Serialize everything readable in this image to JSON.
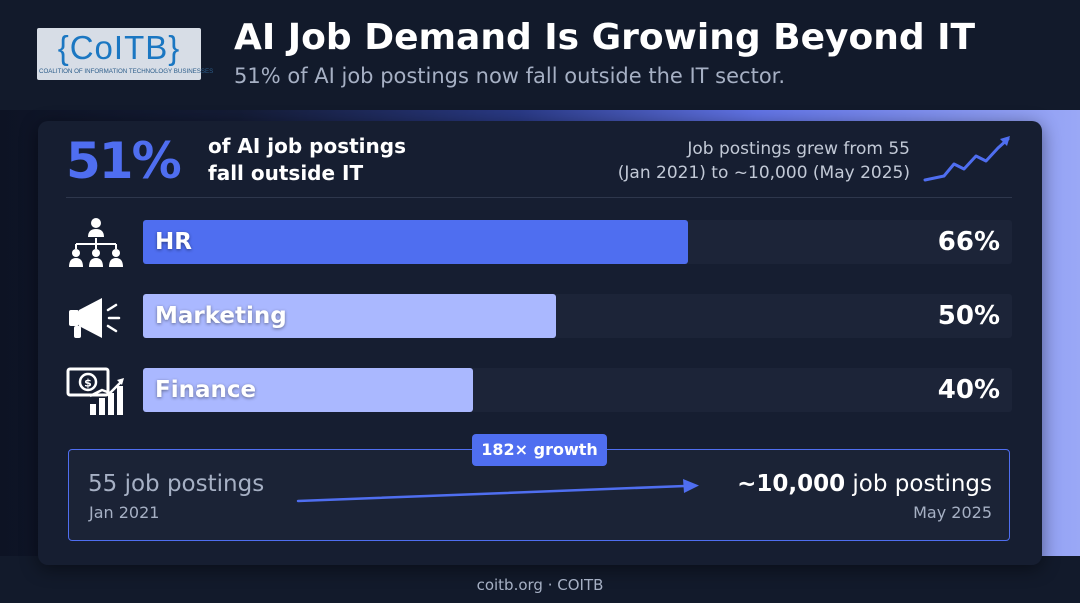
{
  "logo": {
    "main": "{CoITB}",
    "sub": "COALITION OF INFORMATION TECHNOLOGY BUSINESSES"
  },
  "header": {
    "title": "AI Job Demand Is Growing Beyond IT",
    "subtitle": "51% of AI job postings now fall outside the IT sector."
  },
  "summary": {
    "stat": "51%",
    "stat_line1": "of AI job postings",
    "stat_line2": "fall outside IT",
    "growth_line1": "Job postings grew from 55",
    "growth_line2": "(Jan 2021) to ~10,000 (May 2025)",
    "trend_icon": "trend-up-arrow-icon"
  },
  "colors": {
    "accent": "#4f6ef0",
    "hr_bar": "#4f6ef0",
    "marketing_bar": "#aab8ff",
    "finance_bar": "#aab8ff",
    "track": "#1c2438"
  },
  "chart_data": {
    "type": "bar",
    "orientation": "horizontal",
    "categories": [
      "HR",
      "Marketing",
      "Finance"
    ],
    "values": [
      66,
      50,
      40
    ],
    "value_labels": [
      "66%",
      "50%",
      "40%"
    ],
    "icons": [
      "org-chart-icon",
      "megaphone-icon",
      "money-growth-icon"
    ],
    "xlim": [
      0,
      100
    ],
    "grid": false
  },
  "comparison": {
    "pill": "182× growth",
    "start_count": "55 job postings",
    "start_date": "Jan 2021",
    "end_count_bold": "~10,000",
    "end_count_rest": " job postings",
    "end_date": "May 2025"
  },
  "footer": {
    "text": "coitb.org · COITB"
  }
}
